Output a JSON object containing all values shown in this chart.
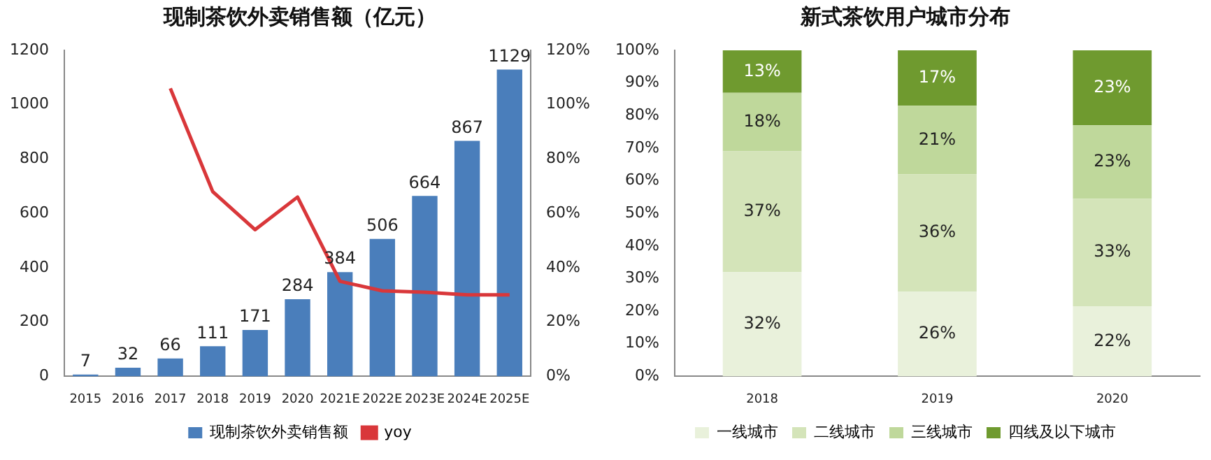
{
  "chart_data": [
    {
      "type": "bar",
      "title": "现制茶饮外卖销售额（亿元）",
      "categories": [
        "2015",
        "2016",
        "2017",
        "2018",
        "2019",
        "2020",
        "2021E",
        "2022E",
        "2023E",
        "2024E",
        "2025E"
      ],
      "series": [
        {
          "name": "现制茶饮外卖销售额",
          "color": "#4a7ebb",
          "values": [
            7,
            32,
            66,
            111,
            171,
            284,
            384,
            506,
            664,
            867,
            1129
          ],
          "value_labels": [
            "7",
            "32",
            "66",
            "111",
            "171",
            "284",
            "384",
            "506",
            "664",
            "867",
            "1129"
          ]
        },
        {
          "name": "yoy",
          "type": "line",
          "axis": "y2",
          "color": "#d9373a",
          "values": [
            null,
            null,
            106,
            68,
            54,
            66,
            35,
            31.5,
            31,
            30,
            30
          ]
        }
      ],
      "ylim": [
        0,
        1200
      ],
      "yticks": [
        0,
        200,
        400,
        600,
        800,
        1000,
        1200
      ],
      "y2lim": [
        0,
        120
      ],
      "y2ticks": [
        {
          "value": 0,
          "label": "0%"
        },
        {
          "value": 20,
          "label": "20%"
        },
        {
          "value": 40,
          "label": "40%"
        },
        {
          "value": 60,
          "label": "60%"
        },
        {
          "value": 80,
          "label": "80%"
        },
        {
          "value": 100,
          "label": "100%"
        },
        {
          "value": 120,
          "label": "120%"
        }
      ],
      "grid": false,
      "legend": "bottom",
      "marker": "none"
    },
    {
      "type": "bar",
      "title": "新式茶饮用户城市分布",
      "categories": [
        "2018",
        "2019",
        "2020"
      ],
      "stacked": true,
      "series": [
        {
          "name": "一线城市",
          "color": "#e9f1db",
          "values": [
            32,
            26,
            21.5
          ],
          "value_labels": [
            "32%",
            "26%",
            "22%"
          ]
        },
        {
          "name": "二线城市",
          "color": "#d4e4b9",
          "values": [
            37,
            36,
            33
          ],
          "value_labels": [
            "37%",
            "36%",
            "33%"
          ]
        },
        {
          "name": "三线城市",
          "color": "#bfd89b",
          "values": [
            18,
            21,
            22.5
          ],
          "value_labels": [
            "18%",
            "21%",
            "23%"
          ]
        },
        {
          "name": "四线及以下城市",
          "color": "#6f9a2f",
          "values": [
            13,
            17,
            23
          ],
          "value_labels": [
            "13%",
            "17%",
            "23%"
          ]
        }
      ],
      "ylim": [
        0,
        100
      ],
      "yticks": [
        {
          "value": 0,
          "label": "0%"
        },
        {
          "value": 10,
          "label": "10%"
        },
        {
          "value": 20,
          "label": "20%"
        },
        {
          "value": 30,
          "label": "30%"
        },
        {
          "value": 40,
          "label": "40%"
        },
        {
          "value": 50,
          "label": "50%"
        },
        {
          "value": 60,
          "label": "60%"
        },
        {
          "value": 70,
          "label": "70%"
        },
        {
          "value": 80,
          "label": "80%"
        },
        {
          "value": 90,
          "label": "90%"
        },
        {
          "value": 100,
          "label": "100%"
        }
      ],
      "grid": false,
      "legend": "bottom"
    }
  ]
}
